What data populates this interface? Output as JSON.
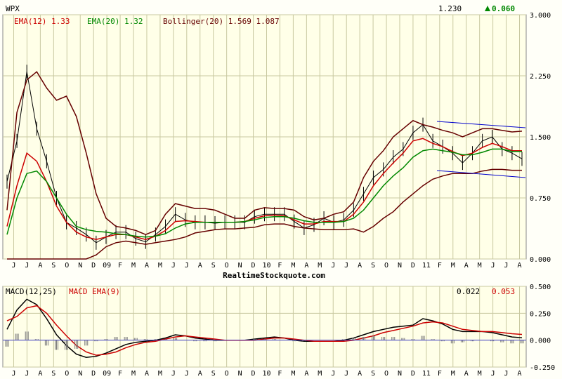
{
  "chart_data": [
    {
      "type": "line",
      "ticker": "WPX",
      "last_price": "1.230",
      "change": "0.060",
      "change_color": "#008800",
      "indicators": [
        {
          "label": "EMA(12) 1.33",
          "color": "#cc0000"
        },
        {
          "label": "EMA(20) 1.32",
          "color": "#008800"
        },
        {
          "label": "Bollinger(20) 1.569 1.087",
          "color": "#660000"
        }
      ],
      "ylim": [
        0,
        3.0
      ],
      "yticks": [
        "3.000",
        "2.250",
        "1.500",
        "0.750",
        "0.000"
      ],
      "ytick_values": [
        3.0,
        2.25,
        1.5,
        0.75,
        0.0
      ],
      "month_labels": [
        "J",
        "J",
        "A",
        "S",
        "O",
        "N",
        "D",
        "09",
        "F",
        "M",
        "A",
        "M",
        "J",
        "J",
        "A",
        "S",
        "O",
        "N",
        "D",
        "10",
        "F",
        "M",
        "A",
        "M",
        "J",
        "J",
        "A",
        "S",
        "O",
        "N",
        "D",
        "11",
        "F",
        "M",
        "A",
        "M",
        "J",
        "J",
        "A"
      ],
      "watermark": "RealtimeStockquote.com",
      "series": [
        {
          "name": "Close",
          "color": "#000000",
          "values": [
            0.95,
            1.45,
            2.3,
            1.6,
            1.2,
            0.75,
            0.45,
            0.38,
            0.3,
            0.2,
            0.27,
            0.33,
            0.33,
            0.25,
            0.21,
            0.3,
            0.4,
            0.55,
            0.48,
            0.45,
            0.45,
            0.44,
            0.45,
            0.45,
            0.45,
            0.52,
            0.55,
            0.55,
            0.55,
            0.46,
            0.38,
            0.42,
            0.5,
            0.45,
            0.48,
            0.6,
            0.8,
            1.0,
            1.1,
            1.25,
            1.35,
            1.55,
            1.65,
            1.45,
            1.38,
            1.3,
            1.18,
            1.3,
            1.45,
            1.5,
            1.35,
            1.3,
            1.23
          ]
        },
        {
          "name": "EMA(12)",
          "color": "#cc0000",
          "values": [
            0.4,
            0.9,
            1.3,
            1.2,
            0.95,
            0.65,
            0.45,
            0.33,
            0.27,
            0.24,
            0.27,
            0.3,
            0.3,
            0.27,
            0.24,
            0.28,
            0.35,
            0.46,
            0.47,
            0.46,
            0.45,
            0.45,
            0.45,
            0.45,
            0.46,
            0.5,
            0.53,
            0.54,
            0.53,
            0.48,
            0.43,
            0.43,
            0.46,
            0.46,
            0.46,
            0.55,
            0.7,
            0.9,
            1.05,
            1.18,
            1.3,
            1.45,
            1.48,
            1.42,
            1.38,
            1.32,
            1.27,
            1.3,
            1.37,
            1.42,
            1.38,
            1.33,
            1.33
          ]
        },
        {
          "name": "EMA(20)",
          "color": "#008800",
          "values": [
            0.3,
            0.75,
            1.05,
            1.08,
            0.95,
            0.75,
            0.55,
            0.4,
            0.36,
            0.34,
            0.33,
            0.31,
            0.3,
            0.28,
            0.27,
            0.28,
            0.31,
            0.38,
            0.43,
            0.45,
            0.45,
            0.45,
            0.45,
            0.45,
            0.46,
            0.48,
            0.51,
            0.52,
            0.52,
            0.5,
            0.47,
            0.45,
            0.45,
            0.45,
            0.46,
            0.5,
            0.6,
            0.75,
            0.9,
            1.02,
            1.12,
            1.25,
            1.33,
            1.35,
            1.33,
            1.31,
            1.28,
            1.28,
            1.31,
            1.35,
            1.35,
            1.32,
            1.32
          ]
        },
        {
          "name": "Bollinger Upper",
          "color": "#660000",
          "values": [
            0.6,
            1.8,
            2.2,
            2.3,
            2.1,
            1.95,
            2.0,
            1.75,
            1.3,
            0.8,
            0.5,
            0.4,
            0.38,
            0.35,
            0.3,
            0.35,
            0.55,
            0.68,
            0.65,
            0.62,
            0.62,
            0.6,
            0.55,
            0.5,
            0.5,
            0.6,
            0.63,
            0.62,
            0.62,
            0.6,
            0.52,
            0.48,
            0.5,
            0.55,
            0.58,
            0.7,
            1.0,
            1.2,
            1.33,
            1.5,
            1.6,
            1.7,
            1.65,
            1.62,
            1.58,
            1.55,
            1.5,
            1.55,
            1.6,
            1.6,
            1.58,
            1.56,
            1.57
          ]
        },
        {
          "name": "Bollinger Lower",
          "color": "#660000",
          "values": [
            0.0,
            0.0,
            0.0,
            -0.1,
            -0.2,
            -0.3,
            -0.25,
            -0.15,
            -0.05,
            0.05,
            0.15,
            0.2,
            0.22,
            0.2,
            0.18,
            0.2,
            0.22,
            0.24,
            0.27,
            0.32,
            0.34,
            0.36,
            0.37,
            0.37,
            0.38,
            0.39,
            0.42,
            0.43,
            0.43,
            0.4,
            0.38,
            0.37,
            0.36,
            0.36,
            0.36,
            0.37,
            0.33,
            0.4,
            0.5,
            0.58,
            0.7,
            0.8,
            0.9,
            0.98,
            1.02,
            1.05,
            1.05,
            1.05,
            1.08,
            1.1,
            1.1,
            1.09,
            1.09
          ]
        }
      ]
    },
    {
      "type": "line",
      "title": "MACD(12,25)",
      "ema_label": "MACD EMA(9)",
      "macd_value": "0.022",
      "ema_value": "0.053",
      "ylim": [
        -0.25,
        0.5
      ],
      "yticks": [
        "0.500",
        "0.250",
        "0.000",
        "-0.250"
      ],
      "ytick_values": [
        0.5,
        0.25,
        0.0,
        -0.25
      ],
      "series": [
        {
          "name": "MACD(12,25)",
          "color": "#000000",
          "values": [
            0.1,
            0.28,
            0.38,
            0.33,
            0.2,
            0.05,
            -0.05,
            -0.13,
            -0.16,
            -0.15,
            -0.12,
            -0.08,
            -0.04,
            -0.02,
            -0.01,
            0.0,
            0.02,
            0.05,
            0.04,
            0.02,
            0.01,
            0.0,
            0.0,
            0.0,
            0.0,
            0.01,
            0.02,
            0.03,
            0.02,
            0.0,
            -0.01,
            -0.01,
            -0.01,
            -0.01,
            0.0,
            0.02,
            0.05,
            0.08,
            0.1,
            0.12,
            0.13,
            0.14,
            0.2,
            0.18,
            0.15,
            0.1,
            0.08,
            0.08,
            0.08,
            0.07,
            0.05,
            0.03,
            0.022
          ]
        },
        {
          "name": "MACD EMA(9)",
          "color": "#cc0000",
          "values": [
            0.18,
            0.22,
            0.3,
            0.32,
            0.25,
            0.14,
            0.04,
            -0.05,
            -0.11,
            -0.14,
            -0.13,
            -0.11,
            -0.07,
            -0.04,
            -0.02,
            -0.01,
            0.01,
            0.03,
            0.04,
            0.03,
            0.02,
            0.01,
            0.0,
            0.0,
            0.0,
            0.0,
            0.01,
            0.02,
            0.02,
            0.01,
            0.0,
            -0.01,
            -0.01,
            -0.01,
            -0.01,
            0.0,
            0.02,
            0.04,
            0.07,
            0.09,
            0.11,
            0.13,
            0.16,
            0.17,
            0.16,
            0.13,
            0.1,
            0.09,
            0.08,
            0.08,
            0.07,
            0.06,
            0.053
          ]
        },
        {
          "name": "Histogram",
          "color": "#777777",
          "values": [
            -0.06,
            0.06,
            0.08,
            0.01,
            -0.05,
            -0.09,
            -0.09,
            -0.08,
            -0.05,
            -0.01,
            0.01,
            0.03,
            0.03,
            0.02,
            0.01,
            0.01,
            0.01,
            0.02,
            0.0,
            -0.01,
            -0.01,
            -0.01,
            0.0,
            0.0,
            0.0,
            0.01,
            0.01,
            0.01,
            0.0,
            -0.01,
            -0.01,
            0.0,
            0.0,
            0.0,
            0.01,
            0.02,
            0.03,
            0.04,
            0.03,
            0.03,
            0.02,
            0.01,
            0.04,
            0.01,
            -0.01,
            -0.03,
            -0.02,
            -0.01,
            0.0,
            -0.01,
            -0.02,
            -0.03,
            -0.03
          ]
        }
      ]
    }
  ]
}
